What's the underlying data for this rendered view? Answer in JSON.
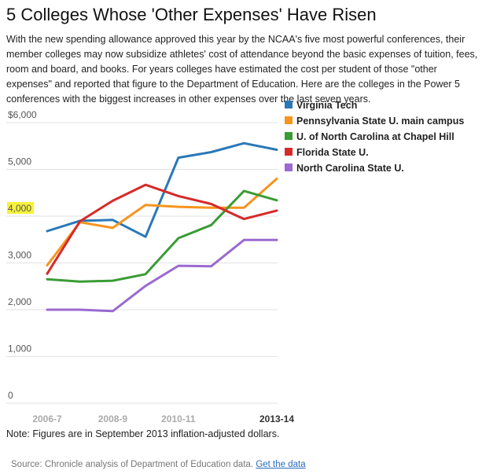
{
  "title": "5 Colleges Whose 'Other Expenses' Have Risen",
  "intro": "With the new spending allowance approved this year by the NCAA's five most powerful conferences, their member colleges may now subsidize athletes' cost of attendance beyond the basic expenses of tuition, fees, room and board, and books. For years colleges have estimated the cost per student of those \"other expenses\" and reported that figure to the Department of Education. Here are the colleges in the Power 5 conferences with the biggest increases in other expenses over the last seven years.",
  "note": "Note: Figures are in September 2013 inflation-adjusted dollars.",
  "source_text": "Source: Chronicle analysis of Department of Education data.",
  "source_link": "Get the data",
  "chart_data": {
    "type": "line",
    "x": [
      "2006-7",
      "2007-8",
      "2008-9",
      "2009-10",
      "2010-11",
      "2011-12",
      "2012-13",
      "2013-14"
    ],
    "x_tick_labels": [
      "2006-7",
      "2008-9",
      "2010-11",
      "2013-14"
    ],
    "y_tick_labels": [
      "$6,000",
      "5,000",
      "4,000",
      "3,000",
      "2,000",
      "1,000",
      "0"
    ],
    "ylim": [
      0,
      6000
    ],
    "highlighted_y_tick": "4,000",
    "highlight_color": "#f7f23a",
    "grid": "horizontal",
    "legend_position": "top-right",
    "series": [
      {
        "name": "Virginia Tech",
        "color": "#2a78b8",
        "values": [
          3680,
          3900,
          3920,
          3560,
          5250,
          5370,
          5560,
          5420
        ]
      },
      {
        "name": "Pennsylvania State U. main campus",
        "color": "#f7941d",
        "values": [
          2950,
          3870,
          3750,
          4240,
          4200,
          4180,
          4180,
          4800
        ]
      },
      {
        "name": "U. of North Carolina at Chapel Hill",
        "color": "#3a9c35",
        "values": [
          2650,
          2600,
          2620,
          2760,
          3530,
          3810,
          4540,
          4340
        ]
      },
      {
        "name": "Florida State U.",
        "color": "#d62a2a",
        "values": [
          2770,
          3890,
          4330,
          4670,
          4430,
          4260,
          3940,
          4120
        ]
      },
      {
        "name": "North Carolina State U.",
        "color": "#9a6ad0",
        "values": [
          2000,
          2000,
          1970,
          2510,
          2940,
          2930,
          3490,
          3490
        ]
      }
    ]
  }
}
